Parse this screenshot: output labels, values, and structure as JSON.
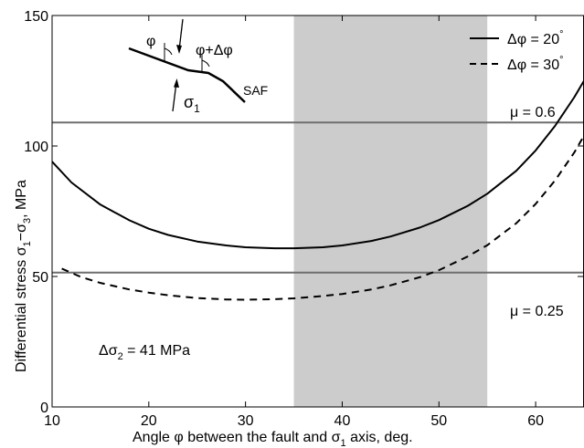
{
  "chart_data": {
    "type": "line",
    "xlabel": "Angle φ between the fault and σ1 axis, deg.",
    "ylabel": "Differential stress σ1−σ3, MPa",
    "xlim": [
      10,
      65
    ],
    "ylim": [
      0,
      150
    ],
    "xticks": [
      10,
      20,
      30,
      40,
      50,
      60
    ],
    "yticks": [
      0,
      50,
      100,
      150
    ],
    "grid": false,
    "legend_position": "top-right",
    "shaded_region": {
      "x": [
        35,
        55
      ],
      "color": "#cccccc"
    },
    "series": [
      {
        "name": "Δφ = 20°",
        "style": "solid",
        "x": [
          10,
          12,
          15,
          18,
          20,
          22,
          25,
          28,
          30,
          33,
          35,
          38,
          40,
          43,
          45,
          48,
          50,
          53,
          55,
          58,
          60,
          62,
          64,
          65
        ],
        "y": [
          94,
          86,
          77.5,
          71.5,
          68.3,
          65.9,
          63.4,
          61.9,
          61.2,
          60.8,
          60.8,
          61.2,
          61.9,
          63.6,
          65.3,
          68.7,
          71.6,
          77.1,
          81.7,
          90.5,
          98.3,
          107.7,
          118.7,
          125
        ]
      },
      {
        "name": "Δφ = 30°",
        "style": "dashed",
        "x": [
          11,
          13,
          15,
          18,
          20,
          22,
          25,
          28,
          30,
          33,
          35,
          38,
          40,
          43,
          45,
          48,
          50,
          53,
          55,
          58,
          60,
          62,
          64,
          65
        ],
        "y": [
          53,
          49.8,
          47.5,
          45,
          43.8,
          42.8,
          41.7,
          41.2,
          41.1,
          41.3,
          41.6,
          42.5,
          43.3,
          45,
          46.6,
          49.7,
          52.4,
          57.7,
          62,
          70.4,
          77.8,
          86.8,
          97.5,
          104
        ]
      }
    ],
    "reference_lines": [
      {
        "label": "μ = 0.6",
        "y": 109
      },
      {
        "label": "μ = 0.25",
        "y": 51.5
      }
    ],
    "annotations": {
      "stress_note": "Δσ2 = 41 MPa",
      "phi": "φ",
      "phi_delta": "φ+Δφ",
      "sigma1": "σ1",
      "saf": "SAF"
    },
    "colors": {
      "shade": "#cccccc",
      "reference_line": "#6e6e6e",
      "curve": "#000000"
    }
  },
  "text": {
    "x_axis_label": "Angle φ between the fault and σ",
    "x_axis_label_sub": "1",
    "x_axis_label_tail": " axis, deg.",
    "y_axis_label": "Differential stress σ",
    "y_axis_label_sub1": "1",
    "y_axis_label_mid": "−σ",
    "y_axis_label_sub2": "3",
    "y_axis_label_tail": ", MPa",
    "legend_20": "Δφ = 20",
    "legend_30": "Δφ = 30",
    "degree": "°",
    "mu_06": "μ = 0.6",
    "mu_025": "μ = 0.25",
    "stress_note": "Δσ",
    "stress_note_sub": "2",
    "stress_note_tail": " = 41 MPa",
    "inset_phi": "φ",
    "inset_phi_delta": "φ+Δφ",
    "inset_sigma": "σ",
    "inset_sigma_sub": "1",
    "inset_saf": "SAF"
  }
}
